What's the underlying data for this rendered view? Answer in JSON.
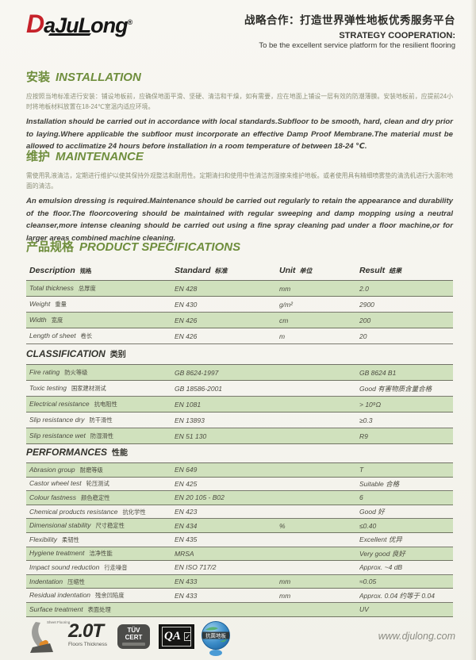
{
  "header": {
    "logo_d": "D",
    "logo_rest": "aJuLong",
    "logo_reg": "®",
    "strategy_cn": "战略合作：打造世界弹性地板优秀服务平台",
    "strategy_en_title": "STRATEGY COOPERATION:",
    "strategy_en_sub": "To be the excellent service platform for the resilient flooring"
  },
  "sections": {
    "installation": {
      "title_cn": "安装",
      "title_en": "INSTALLATION",
      "body_cn": "应按照当地标准进行安装：铺设地板前，应确保地面平滑、坚硬、清洁和干燥，如有需要，应在地面上铺设一层有效的防潮薄膜。安装地板前，应提前24小时将地板材料放置在18-24℃室温内适应环境。",
      "body_en": "Installation should be carried out in accordance with local standards.Subfloor to be smooth, hard, clean and dry prior to laying.Where applicable the subfloor must incorporate an effective Damp Proof Membrane.The material must be allowed to acclimatize 24 hours before installation in a room temperature of between 18-24 ℃."
    },
    "maintenance": {
      "title_cn": "维护",
      "title_en": "MAINTENANCE",
      "body_cn": "需使用乳液清洁，定期进行维护以使其保持外观整洁和耐用性。定期清扫和使用中性清洁剂湿擦来维护地板。或者使用具有精细喷雾垫的清洗机进行大面积地面的清洁。",
      "body_en": "An emulsion dressing is required.Maintenance should be carried out regularly to retain the appearance and durability of the floor.The floorcovering should be maintained with regular sweeping and damp mopping using a neutral cleanser,more intense cleaning should be carried out using a fine spray cleaning pad under a floor machine,or for larger areas combined machine cleaning."
    },
    "specifications": {
      "title_cn": "产品规格",
      "title_en": "PRODUCT SPECIFICATIONS"
    }
  },
  "spec_table": {
    "headers": [
      {
        "en": "Description",
        "cn": "规格"
      },
      {
        "en": "Standard",
        "cn": "标准"
      },
      {
        "en": "Unit",
        "cn": "单位"
      },
      {
        "en": "Result",
        "cn": "结果"
      }
    ],
    "rows": [
      {
        "desc_en": "Total thickness",
        "desc_cn": "总厚度",
        "standard": "EN 428",
        "unit": "mm",
        "result": "2.0",
        "shade": true
      },
      {
        "desc_en": "Weight",
        "desc_cn": "重量",
        "standard": "EN 430",
        "unit": "g/m²",
        "result": "2900",
        "shade": false
      },
      {
        "desc_en": "Width",
        "desc_cn": "宽度",
        "standard": "EN 426",
        "unit": "cm",
        "result": "200",
        "shade": true
      },
      {
        "desc_en": "Length of sheet",
        "desc_cn": "卷长",
        "standard": "EN 426",
        "unit": "m",
        "result": "20",
        "shade": false
      }
    ]
  },
  "classification": {
    "title_en": "CLASSIFICATION",
    "title_cn": "类别",
    "rows": [
      {
        "desc_en": "Fire rating",
        "desc_cn": "防火等级",
        "standard": "GB 8624-1997",
        "unit": "",
        "result": "GB 8624 B1",
        "shade": true
      },
      {
        "desc_en": "Toxic testing",
        "desc_cn": "国家建材测试",
        "standard": "GB 18586-2001",
        "unit": "",
        "result": "Good 有害物质含量合格",
        "shade": false
      },
      {
        "desc_en": "Electrical resistance",
        "desc_cn": "抗电阻性",
        "standard": "EN 1081",
        "unit": "",
        "result": "> 10⁹Ω",
        "shade": true
      },
      {
        "desc_en": "Slip resistance dry",
        "desc_cn": "防干滑性",
        "standard": "EN 13893",
        "unit": "",
        "result": "≥0.3",
        "shade": false
      },
      {
        "desc_en": "Slip resistance wet",
        "desc_cn": "防湿滑性",
        "standard": "EN 51 130",
        "unit": "",
        "result": "R9",
        "shade": true
      }
    ]
  },
  "performances": {
    "title_en": "PERFORMANCES",
    "title_cn": "性能",
    "rows": [
      {
        "desc_en": "Abrasion group",
        "desc_cn": "耐磨等级",
        "standard": "EN 649",
        "unit": "",
        "result": "T",
        "shade": true
      },
      {
        "desc_en": "Castor wheel test",
        "desc_cn": "轮压测试",
        "standard": "EN 425",
        "unit": "",
        "result": "Suitable 合格",
        "shade": false
      },
      {
        "desc_en": "Colour fastness",
        "desc_cn": "颜色稳定性",
        "standard": "EN 20 105 - B02",
        "unit": "",
        "result": "6",
        "shade": true
      },
      {
        "desc_en": "Chemical products resistance",
        "desc_cn": "抗化学性",
        "standard": "EN 423",
        "unit": "",
        "result": "Good 好",
        "shade": false
      },
      {
        "desc_en": "Dimensional stability",
        "desc_cn": "尺寸稳定性",
        "standard": "EN 434",
        "unit": "%",
        "result": "≤0.40",
        "shade": true
      },
      {
        "desc_en": "Flexibility",
        "desc_cn": "柔韧性",
        "standard": "EN 435",
        "unit": "",
        "result": "Excellent 优异",
        "shade": false
      },
      {
        "desc_en": "Hygiene treatment",
        "desc_cn": "洁净性能",
        "standard": "MRSA",
        "unit": "",
        "result": "Very good 良好",
        "shade": true
      },
      {
        "desc_en": "Impact sound reduction",
        "desc_cn": "行走噪音",
        "standard": "EN ISO 717/2",
        "unit": "",
        "result": "Approx. ~4 dB",
        "shade": false
      },
      {
        "desc_en": "Indentation",
        "desc_cn": "压缩性",
        "standard": "EN 433",
        "unit": "mm",
        "result": "≈0.05",
        "shade": true
      },
      {
        "desc_en": "Residual indentation",
        "desc_cn": "残余凹陷度",
        "standard": "EN 433",
        "unit": "mm",
        "result": "Approx. 0.04 约等于 0.04",
        "shade": false
      },
      {
        "desc_en": "Surface treatment",
        "desc_cn": "表面处理",
        "standard": "",
        "unit": "",
        "result": "UV",
        "shade": true
      }
    ]
  },
  "footer": {
    "sheet_flooring_label": "Sheet Flooring",
    "thickness_value": "2.0T",
    "thickness_label": "Floors Thickness",
    "tuv_line1": "TÜV",
    "tuv_line2": "CERT",
    "qa_label": "QA",
    "qa_check": "✓",
    "globe_band_label": "抗菌地板",
    "website": "www.djulong.com"
  }
}
